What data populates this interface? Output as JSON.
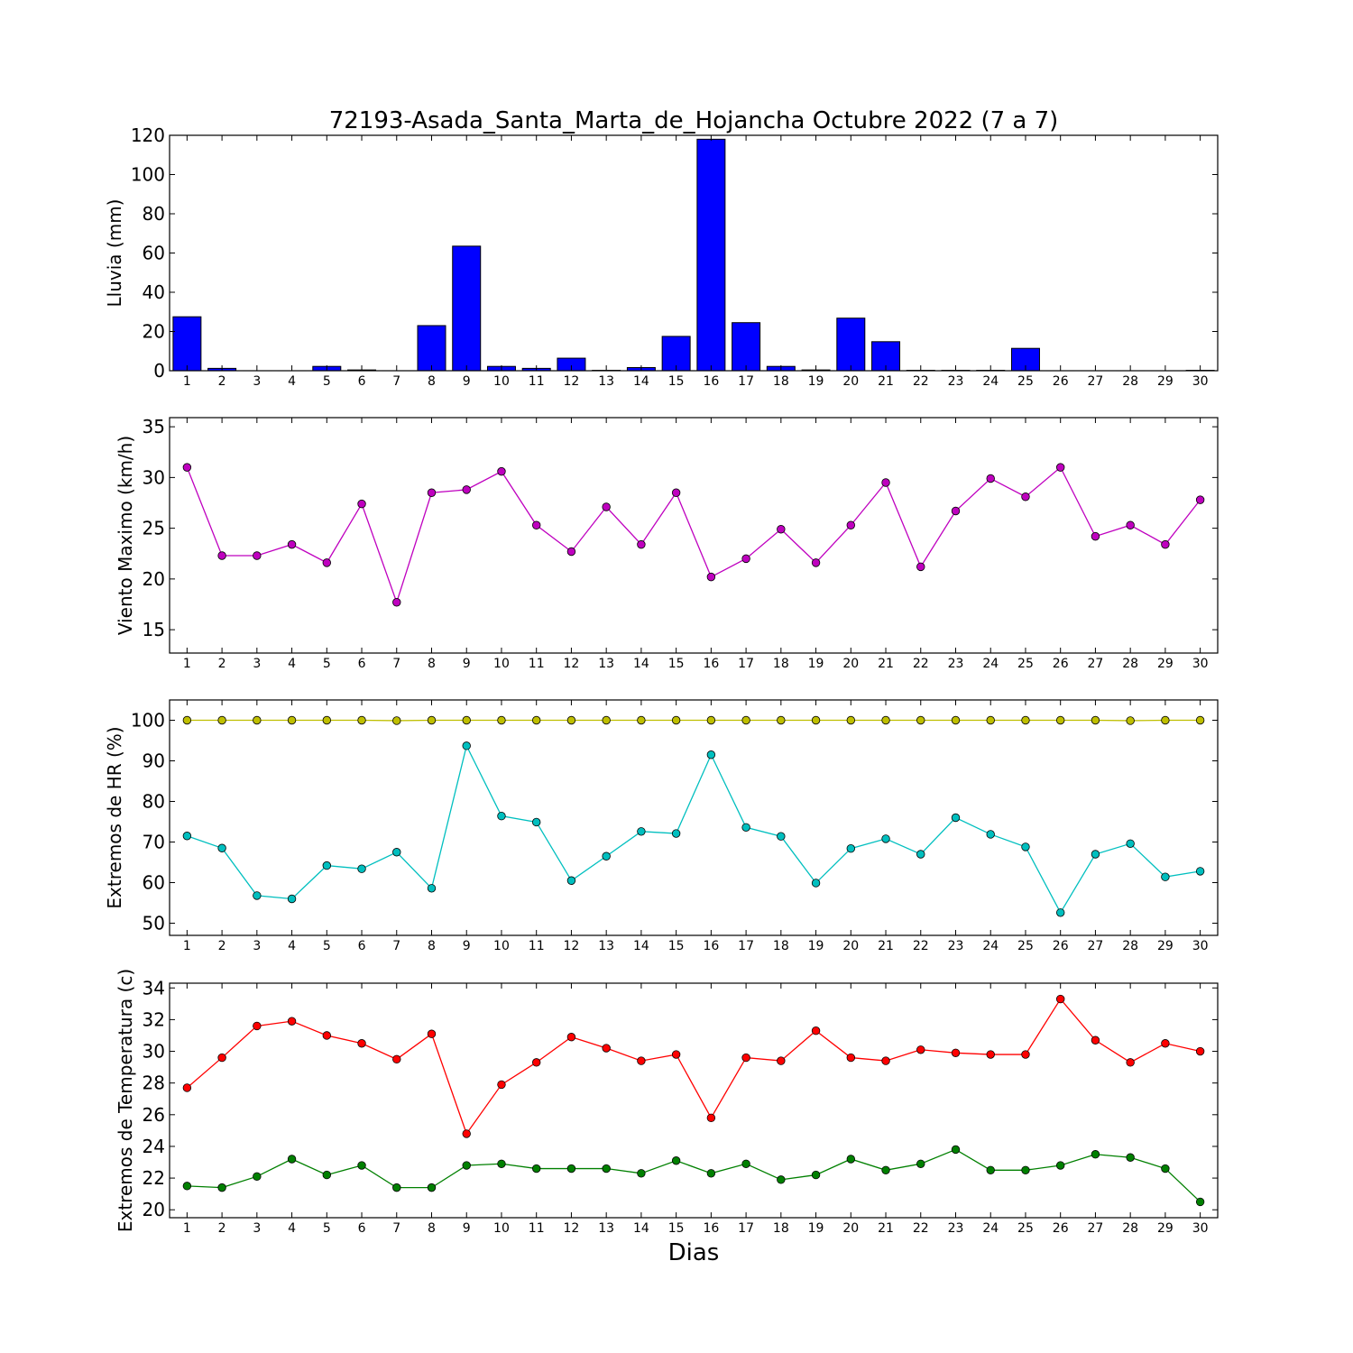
{
  "chart_data": {
    "type": "multi-panel",
    "title": "72193-Asada_Santa_Marta_de_Hojancha Octubre 2022  (7 a 7)",
    "xlabel": "Dias",
    "x": [
      1,
      2,
      3,
      4,
      5,
      6,
      7,
      8,
      9,
      10,
      11,
      12,
      13,
      14,
      15,
      16,
      17,
      18,
      19,
      20,
      21,
      22,
      23,
      24,
      25,
      26,
      27,
      28,
      29,
      30
    ],
    "panels": [
      {
        "type": "bar",
        "ylabel": "Lluvia (mm)",
        "ylim": [
          0,
          120
        ],
        "yticks": [
          0,
          20,
          40,
          60,
          80,
          100,
          120
        ],
        "series": [
          {
            "color": "#0000ff",
            "values": [
              27.5,
              1.2,
              0,
              0,
              2.2,
              0.4,
              0,
              23,
              63.5,
              2.2,
              1.2,
              6.4,
              0.2,
              1.6,
              17.5,
              118,
              24.5,
              2.2,
              0.4,
              26.8,
              14.8,
              0.2,
              0.2,
              0.2,
              11.4,
              0,
              0,
              0,
              0,
              0.2
            ]
          }
        ]
      },
      {
        "type": "line",
        "ylabel": "Viento Maximo (km/h)",
        "ylim": [
          12.7,
          35.9
        ],
        "yticks": [
          15,
          20,
          25,
          30,
          35
        ],
        "series": [
          {
            "color": "#bf00bf",
            "values": [
              31,
              22.3,
              22.3,
              23.4,
              21.6,
              27.4,
              17.7,
              28.5,
              28.8,
              30.6,
              25.3,
              22.7,
              27.1,
              23.4,
              28.5,
              20.2,
              22,
              24.9,
              21.6,
              25.3,
              29.5,
              21.2,
              26.7,
              29.9,
              28.1,
              31,
              24.2,
              25.3,
              23.4,
              27.8
            ]
          }
        ]
      },
      {
        "type": "line",
        "ylabel": "Extremos de HR (%)",
        "ylim": [
          47,
          105
        ],
        "yticks": [
          50,
          60,
          70,
          80,
          90,
          100
        ],
        "series": [
          {
            "color": "#bfbf00",
            "values": [
              100,
              100,
              100,
              100,
              100,
              100,
              99.9,
              100,
              100,
              100,
              100,
              100,
              100,
              100,
              100,
              100,
              100,
              100,
              100,
              100,
              100,
              100,
              100,
              100,
              100,
              100,
              100,
              99.9,
              100,
              100
            ]
          },
          {
            "color": "#00bfbf",
            "values": [
              71.5,
              68.5,
              56.8,
              56,
              64.2,
              63.4,
              67.5,
              58.6,
              93.7,
              76.4,
              74.9,
              60.5,
              66.5,
              72.6,
              72.1,
              91.5,
              73.6,
              71.4,
              59.9,
              68.4,
              70.8,
              67,
              76,
              71.9,
              68.8,
              52.6,
              67,
              69.6,
              61.4,
              62.8
            ]
          }
        ]
      },
      {
        "type": "line",
        "ylabel": "Extremos de Temperatura (c)",
        "ylim": [
          19.5,
          34.3
        ],
        "yticks": [
          20,
          22,
          24,
          26,
          28,
          30,
          32,
          34
        ],
        "series": [
          {
            "color": "#ff0000",
            "values": [
              27.7,
              29.6,
              31.6,
              31.9,
              31,
              30.5,
              29.5,
              31.1,
              24.8,
              27.9,
              29.3,
              30.9,
              30.2,
              29.4,
              29.8,
              25.8,
              29.6,
              29.4,
              31.3,
              29.6,
              29.4,
              30.1,
              29.9,
              29.8,
              29.8,
              33.3,
              30.7,
              29.3,
              30.5,
              30
            ]
          },
          {
            "color": "#008000",
            "values": [
              21.5,
              21.4,
              22.1,
              23.2,
              22.2,
              22.8,
              21.4,
              21.4,
              22.8,
              22.9,
              22.6,
              22.6,
              22.6,
              22.3,
              23.1,
              22.3,
              22.9,
              21.9,
              22.2,
              23.2,
              22.5,
              22.9,
              23.8,
              22.5,
              22.5,
              22.8,
              23.5,
              23.3,
              22.6,
              20.5
            ]
          }
        ]
      }
    ]
  }
}
